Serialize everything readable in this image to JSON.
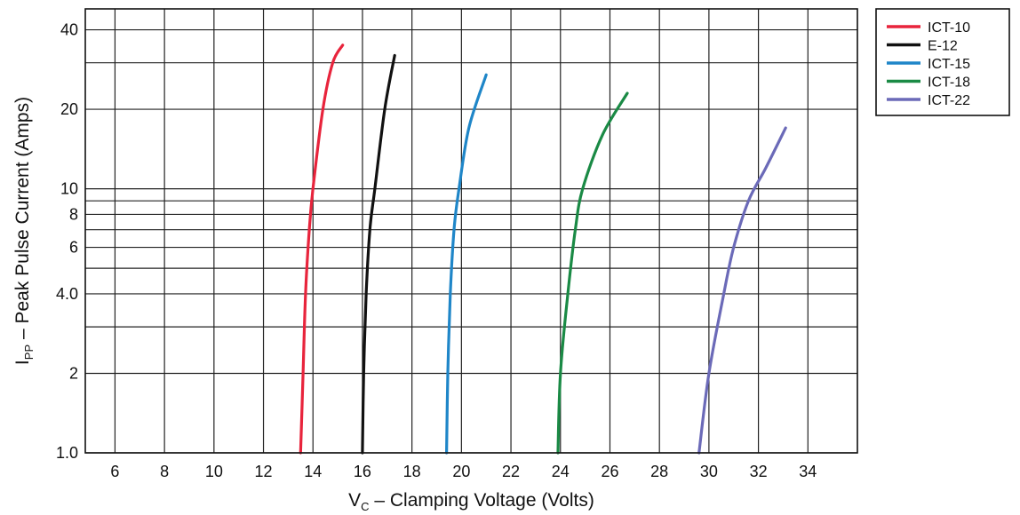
{
  "chart_data": {
    "type": "line",
    "xlabel": {
      "main": "V",
      "sub": "C",
      "rest": " – Clamping Voltage (Volts)"
    },
    "ylabel": {
      "main": "I",
      "sub": "PP",
      "rest": " – Peak Pulse Current (Amps)"
    },
    "x_scale": "linear",
    "y_scale": "log",
    "xlim": [
      4.8,
      36
    ],
    "ylim": [
      1.0,
      48
    ],
    "x_ticks": [
      6,
      8,
      10,
      12,
      14,
      16,
      18,
      20,
      22,
      24,
      26,
      28,
      30,
      32,
      34
    ],
    "y_gridlines": [
      1.0,
      2,
      3,
      4,
      5,
      6,
      7,
      8,
      9,
      10,
      20,
      30,
      40
    ],
    "y_tick_labels": [
      {
        "value": 1.0,
        "label": "1.0"
      },
      {
        "value": 2,
        "label": "2"
      },
      {
        "value": 4,
        "label": "4.0"
      },
      {
        "value": 6,
        "label": "6"
      },
      {
        "value": 8,
        "label": "8"
      },
      {
        "value": 10,
        "label": "10"
      },
      {
        "value": 20,
        "label": "20"
      },
      {
        "value": 40,
        "label": "40"
      }
    ],
    "grid": true,
    "legend_position": "top-right, outside plot",
    "series": [
      {
        "name": "ICT-10",
        "color": "#e8243c",
        "points": [
          [
            13.5,
            1.0
          ],
          [
            13.6,
            2.0
          ],
          [
            13.7,
            4.0
          ],
          [
            13.85,
            7.0
          ],
          [
            14.0,
            10.0
          ],
          [
            14.4,
            20.0
          ],
          [
            14.8,
            30.0
          ],
          [
            15.2,
            35.0
          ]
        ]
      },
      {
        "name": "E-12",
        "color": "#111111",
        "points": [
          [
            16.0,
            1.0
          ],
          [
            16.05,
            2.0
          ],
          [
            16.15,
            4.0
          ],
          [
            16.3,
            7.0
          ],
          [
            16.5,
            10.0
          ],
          [
            16.9,
            20.0
          ],
          [
            17.3,
            32.0
          ]
        ]
      },
      {
        "name": "ICT-15",
        "color": "#1f86c8",
        "points": [
          [
            19.4,
            1.0
          ],
          [
            19.45,
            2.0
          ],
          [
            19.55,
            4.0
          ],
          [
            19.7,
            7.0
          ],
          [
            19.9,
            10.0
          ],
          [
            20.3,
            17.0
          ],
          [
            21.0,
            27.0
          ]
        ]
      },
      {
        "name": "ICT-18",
        "color": "#1a8a45",
        "points": [
          [
            23.9,
            1.0
          ],
          [
            24.0,
            2.0
          ],
          [
            24.3,
            4.0
          ],
          [
            24.6,
            7.0
          ],
          [
            24.9,
            10.0
          ],
          [
            25.7,
            16.0
          ],
          [
            26.7,
            23.0
          ]
        ]
      },
      {
        "name": "ICT-22",
        "color": "#6b6ab8",
        "points": [
          [
            29.6,
            1.0
          ],
          [
            30.0,
            2.0
          ],
          [
            30.6,
            4.0
          ],
          [
            31.0,
            6.0
          ],
          [
            31.6,
            9.0
          ],
          [
            32.3,
            12.0
          ],
          [
            33.1,
            17.0
          ]
        ]
      }
    ]
  }
}
